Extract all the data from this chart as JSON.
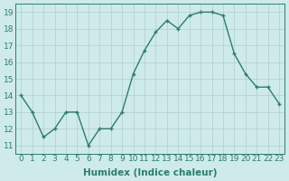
{
  "x": [
    0,
    1,
    2,
    3,
    4,
    5,
    6,
    7,
    8,
    9,
    10,
    11,
    12,
    13,
    14,
    15,
    16,
    17,
    18,
    19,
    20,
    21,
    22,
    23
  ],
  "y": [
    14,
    13,
    11.5,
    12,
    13,
    13,
    11,
    12,
    12,
    13,
    15.3,
    16.7,
    17.8,
    18.5,
    18,
    18.8,
    19,
    19,
    18.8,
    16.5,
    15.3,
    14.5,
    14.5,
    13.5
  ],
  "line_color": "#2e7d6e",
  "bg_color": "#ceeaea",
  "grid_color": "#b0cece",
  "xlabel": "Humidex (Indice chaleur)",
  "ylim": [
    10.5,
    19.5
  ],
  "xlim": [
    -0.5,
    23.5
  ],
  "yticks": [
    11,
    12,
    13,
    14,
    15,
    16,
    17,
    18,
    19
  ],
  "xticks": [
    0,
    1,
    2,
    3,
    4,
    5,
    6,
    7,
    8,
    9,
    10,
    11,
    12,
    13,
    14,
    15,
    16,
    17,
    18,
    19,
    20,
    21,
    22,
    23
  ],
  "xlabel_fontsize": 7.5,
  "tick_fontsize": 6.5
}
